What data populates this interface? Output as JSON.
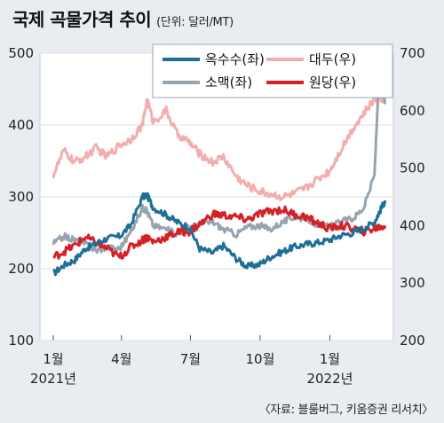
{
  "header": {
    "title": "국제 곡물가격 추이",
    "unit": "(단위: 달러/MT)"
  },
  "source": "〈자료: 블룸버그, 키움증권 리서치〉",
  "colors": {
    "background": "#e9edf1",
    "plot_background": "#ffffff",
    "corn": "#1d6f97",
    "soybean": "#f2aeae",
    "wheat": "#97a4ae",
    "rice": "#d62027"
  },
  "chart_data": {
    "type": "line",
    "x_ticks": [
      "1월",
      "4월",
      "7월",
      "10월",
      "1월"
    ],
    "x_year_labels": [
      "2021년",
      "2022년"
    ],
    "y_left": {
      "ticks": [
        "100",
        "200",
        "300",
        "400",
        "500"
      ],
      "range": [
        100,
        500
      ]
    },
    "y_right": {
      "ticks": [
        "200",
        "300",
        "400",
        "500",
        "600",
        "700"
      ],
      "range": [
        200,
        700
      ]
    },
    "legend_position": "top-right",
    "x": [
      "2021-01-04",
      "2021-01-18",
      "2021-02-01",
      "2021-02-15",
      "2021-03-01",
      "2021-03-15",
      "2021-04-01",
      "2021-04-15",
      "2021-05-01",
      "2021-05-07",
      "2021-05-15",
      "2021-06-01",
      "2021-06-15",
      "2021-07-01",
      "2021-07-15",
      "2021-08-01",
      "2021-08-15",
      "2021-09-01",
      "2021-09-15",
      "2021-10-01",
      "2021-10-15",
      "2021-11-01",
      "2021-11-15",
      "2021-12-01",
      "2021-12-15",
      "2022-01-01",
      "2022-01-15",
      "2022-02-01",
      "2022-02-15",
      "2022-03-01",
      "2022-03-08",
      "2022-03-15"
    ],
    "series": [
      {
        "name": "옥수수(좌)",
        "axis": "left",
        "values": [
          193,
          205,
          212,
          228,
          235,
          242,
          245,
          260,
          300,
          302,
          285,
          275,
          265,
          258,
          228,
          222,
          232,
          214,
          203,
          206,
          216,
          224,
          230,
          234,
          236,
          240,
          246,
          250,
          256,
          265,
          280,
          295
        ]
      },
      {
        "name": "대두(우)",
        "axis": "right",
        "values": [
          488,
          530,
          510,
          520,
          535,
          520,
          540,
          550,
          575,
          620,
          580,
          600,
          560,
          545,
          525,
          510,
          520,
          485,
          470,
          460,
          455,
          450,
          455,
          465,
          480,
          495,
          530,
          570,
          595,
          620,
          625,
          615
        ]
      },
      {
        "name": "소맥(좌)",
        "axis": "left",
        "values": [
          235,
          245,
          240,
          235,
          225,
          230,
          228,
          250,
          285,
          280,
          260,
          255,
          248,
          258,
          262,
          265,
          255,
          248,
          258,
          260,
          255,
          265,
          272,
          270,
          262,
          258,
          265,
          270,
          285,
          330,
          495,
          430
        ]
      },
      {
        "name": "원당(우)",
        "axis": "right",
        "values": [
          345,
          355,
          365,
          380,
          370,
          360,
          345,
          362,
          375,
          380,
          372,
          380,
          388,
          390,
          402,
          420,
          418,
          415,
          410,
          420,
          425,
          428,
          420,
          415,
          405,
          395,
          400,
          395,
          390,
          395,
          398,
          400
        ]
      }
    ]
  }
}
